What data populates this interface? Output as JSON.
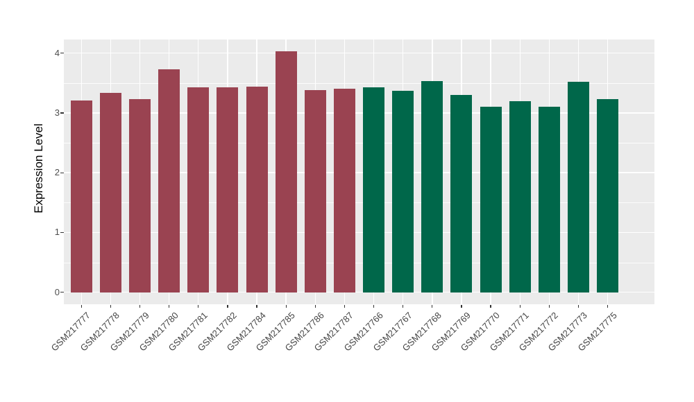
{
  "chart_data": {
    "type": "bar",
    "title": "",
    "xlabel": "",
    "ylabel": "Expression Level",
    "categories": [
      "GSM217777",
      "GSM217778",
      "GSM217779",
      "GSM217780",
      "GSM217781",
      "GSM217782",
      "GSM217784",
      "GSM217785",
      "GSM217786",
      "GSM217787",
      "GSM217766",
      "GSM217767",
      "GSM217768",
      "GSM217769",
      "GSM217770",
      "GSM217771",
      "GSM217772",
      "GSM217773",
      "GSM217775"
    ],
    "values": [
      3.21,
      3.34,
      3.23,
      3.73,
      3.43,
      3.43,
      3.44,
      4.03,
      3.38,
      3.4,
      3.43,
      3.37,
      3.53,
      3.3,
      3.1,
      3.2,
      3.1,
      3.52,
      3.23
    ],
    "bar_colors": [
      "#9A4351",
      "#9A4351",
      "#9A4351",
      "#9A4351",
      "#9A4351",
      "#9A4351",
      "#9A4351",
      "#9A4351",
      "#9A4351",
      "#9A4351",
      "#00674A",
      "#00674A",
      "#00674A",
      "#00674A",
      "#00674A",
      "#00674A",
      "#00674A",
      "#00674A",
      "#00674A"
    ],
    "ylim": [
      -0.2,
      4.26
    ],
    "yticks": [
      0,
      1,
      2,
      3,
      4
    ],
    "y_tick_labels": [
      "0",
      "1",
      "2",
      "3",
      "4"
    ],
    "y_minor_ticks": [
      0.5,
      1.5,
      2.5,
      3.5
    ],
    "x_tick_rotation_deg": 45,
    "grid": true,
    "legend": false,
    "style": {
      "figure_background": "#FFFFFF",
      "panel_background": "#EBEBEB",
      "grid_color": "#FFFFFF",
      "axis_text_color": "#4D4D4D",
      "axis_title_color": "#000000",
      "tick_mark_color": "#333333"
    }
  }
}
